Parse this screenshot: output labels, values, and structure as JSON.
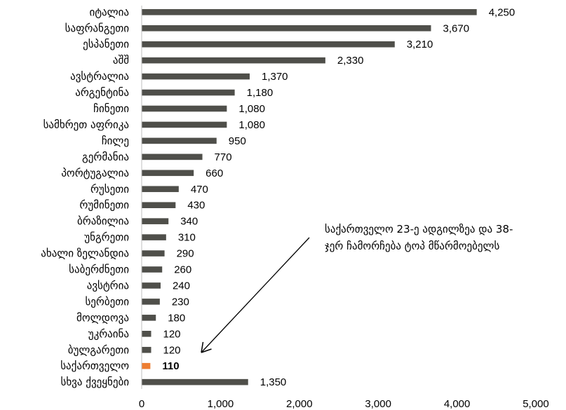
{
  "chart_data": {
    "type": "bar",
    "orientation": "horizontal",
    "categories": [
      "იტალია",
      "საფრანგეთი",
      "ესპანეთი",
      "აშშ",
      "ავსტრალია",
      "არგენტინა",
      "ჩინეთი",
      "სამხრეთ აფრიკა",
      "ჩილე",
      "გერმანია",
      "პორტუგალია",
      "რუსეთი",
      "რუმინეთი",
      "ბრაზილია",
      "უნგრეთი",
      "ახალი ზელანდია",
      "საბერძნეთი",
      "ავსტრია",
      "სერბეთი",
      "მოლდოვა",
      "უკრაინა",
      "ბულგარეთი",
      "საქართველო",
      "სხვა ქვეყნები"
    ],
    "values": [
      4250,
      3670,
      3210,
      2330,
      1370,
      1180,
      1080,
      1080,
      950,
      770,
      660,
      470,
      430,
      340,
      310,
      290,
      260,
      240,
      230,
      180,
      120,
      120,
      110,
      1350
    ],
    "value_labels": [
      "4,250",
      "3,670",
      "3,210",
      "2,330",
      "1,370",
      "1,180",
      "1,080",
      "1,080",
      "950",
      "770",
      "660",
      "470",
      "430",
      "340",
      "310",
      "290",
      "260",
      "240",
      "230",
      "180",
      "120",
      "120",
      "110",
      "1,350"
    ],
    "highlight_index": 22,
    "xlim": [
      0,
      5000
    ],
    "x_ticks": [
      0,
      1000,
      2000,
      3000,
      4000,
      5000
    ],
    "x_tick_labels": [
      "0",
      "1,000",
      "2,000",
      "3,000",
      "4,000",
      "5,000"
    ],
    "grid": false,
    "title": "",
    "xlabel": "",
    "ylabel": "",
    "annotation": {
      "line1": "საქართველო 23-ე ადგილზეა და 38-",
      "line2": "ჯერ ჩამორჩება ტოპ მწარმოებელს"
    },
    "colors": {
      "bar": "#4f4f4a",
      "highlight": "#ed7d31",
      "axis": "#bfbfbf",
      "text": "#000000"
    }
  }
}
